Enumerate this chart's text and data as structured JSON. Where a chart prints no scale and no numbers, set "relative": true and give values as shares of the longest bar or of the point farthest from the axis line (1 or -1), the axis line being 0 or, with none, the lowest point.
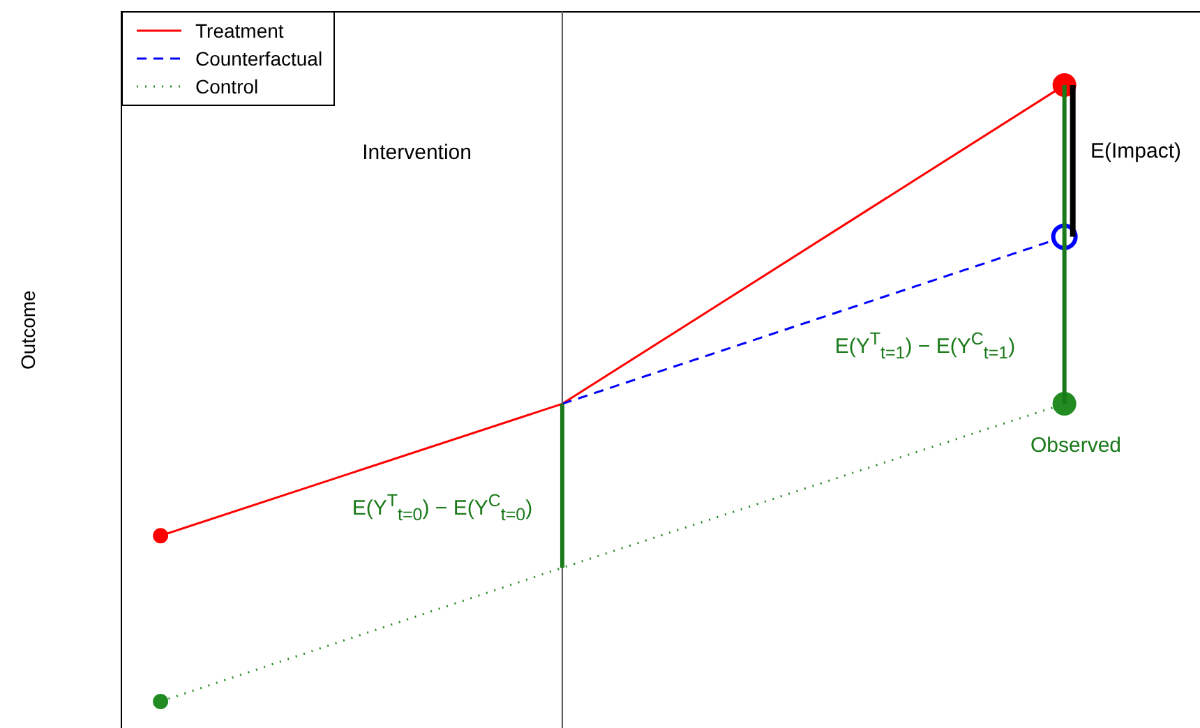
{
  "chart_data": {
    "type": "line",
    "relative": true,
    "ylabel": "Outcome",
    "categories": [
      null,
      null,
      null,
      null,
      null,
      null,
      null,
      null,
      null,
      null
    ],
    "series": [
      {
        "name": "Treatment",
        "color": "#ff0000",
        "line_style": "solid",
        "values": [
          0.269,
          null,
          null,
          null,
          0.483,
          null,
          null,
          null,
          null,
          1
        ]
      },
      {
        "name": "Counterfactual",
        "color": "#0000ff",
        "line_style": "dashed",
        "values": [
          null,
          null,
          null,
          null,
          0.483,
          null,
          null,
          null,
          null,
          0.754
        ]
      },
      {
        "name": "Control",
        "color": "#228b22",
        "line_style": "dotted",
        "values": [
          0,
          null,
          null,
          null,
          0.217,
          null,
          null,
          null,
          null,
          0.483
        ]
      }
    ],
    "annotations": [
      "Intervention",
      "E(Y$^{T}$$_{t=0}$) − E(Y$^{C}$$_{t=0}$)",
      "E(Y$^{T}$$_{t=1}$) − E(Y$^{C}$$_{t=1}$)",
      "E(Impact)",
      "Observed"
    ],
    "legend": "top left",
    "marker": "circle"
  }
}
